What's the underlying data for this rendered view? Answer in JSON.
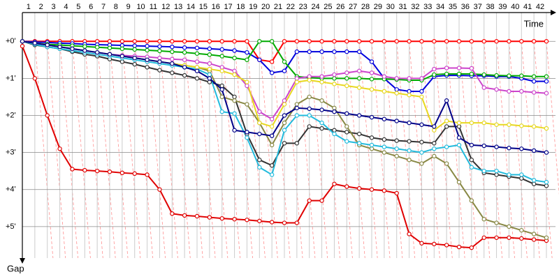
{
  "chart_data": {
    "type": "line",
    "x_label": "Time",
    "y_label": "Gap",
    "xlim": [
      0,
      42
    ],
    "xticks": [
      1,
      2,
      3,
      4,
      5,
      6,
      7,
      8,
      9,
      10,
      11,
      12,
      13,
      14,
      15,
      16,
      17,
      18,
      19,
      20,
      21,
      22,
      23,
      24,
      25,
      26,
      27,
      28,
      29,
      30,
      31,
      32,
      33,
      34,
      35,
      36,
      37,
      38,
      39,
      40,
      41,
      42
    ],
    "ylim": [
      -0.55,
      5.85
    ],
    "yticks": [
      {
        "value": 0,
        "label": "+0'"
      },
      {
        "value": 1,
        "label": "+1'"
      },
      {
        "value": 2,
        "label": "+2'"
      },
      {
        "value": 3,
        "label": "+3'"
      },
      {
        "value": 4,
        "label": "+4'"
      },
      {
        "value": 5,
        "label": "+5'"
      }
    ],
    "grid": true,
    "x": [
      0,
      1,
      2,
      3,
      4,
      5,
      6,
      7,
      8,
      9,
      10,
      11,
      12,
      13,
      14,
      15,
      16,
      17,
      18,
      19,
      20,
      21,
      22,
      23,
      24,
      25,
      26,
      27,
      28,
      29,
      30,
      31,
      32,
      33,
      34,
      35,
      36,
      37,
      38,
      39,
      40,
      41,
      42
    ],
    "series": [
      {
        "color": "#ff0000",
        "values": [
          0,
          0,
          0,
          0,
          0,
          0,
          0,
          0,
          0,
          0,
          0,
          0,
          0,
          0,
          0,
          0,
          0,
          0,
          0,
          0.5,
          0.55,
          0,
          0,
          0,
          0,
          0,
          0,
          0,
          0,
          0,
          0,
          0,
          0,
          0,
          0,
          0,
          0,
          0,
          0,
          0,
          0,
          0,
          0
        ]
      },
      {
        "color": "#e00000",
        "values": [
          0.13,
          1.0,
          2.0,
          2.9,
          3.45,
          3.48,
          3.5,
          3.52,
          3.55,
          3.57,
          3.6,
          4.0,
          4.65,
          4.7,
          4.72,
          4.75,
          4.78,
          4.8,
          4.82,
          4.85,
          4.88,
          4.9,
          4.9,
          4.3,
          4.3,
          3.85,
          3.92,
          3.97,
          4.0,
          4.03,
          4.1,
          5.2,
          5.45,
          5.47,
          5.5,
          5.55,
          5.57,
          5.3,
          5.3,
          5.3,
          5.32,
          5.35,
          5.38
        ]
      },
      {
        "color": "#0000dd",
        "values": [
          0,
          0.02,
          0.03,
          0.05,
          0.06,
          0.08,
          0.09,
          0.1,
          0.11,
          0.12,
          0.13,
          0.14,
          0.15,
          0.17,
          0.18,
          0.2,
          0.22,
          0.25,
          0.3,
          0.5,
          0.85,
          0.8,
          0.28,
          0.28,
          0.28,
          0.28,
          0.28,
          0.28,
          0.55,
          1.0,
          1.3,
          1.35,
          1.35,
          0.95,
          0.92,
          0.92,
          0.93,
          0.93,
          0.95,
          0.95,
          1.0,
          1.08,
          1.08
        ]
      },
      {
        "color": "#00aa00",
        "values": [
          0,
          0.05,
          0.08,
          0.1,
          0.12,
          0.14,
          0.16,
          0.18,
          0.2,
          0.22,
          0.24,
          0.26,
          0.28,
          0.3,
          0.33,
          0.36,
          0.4,
          0.45,
          0.5,
          0,
          0,
          0.55,
          0.95,
          0.98,
          1.0,
          1.0,
          1.0,
          1.0,
          1.02,
          1.02,
          1.03,
          1.05,
          1.05,
          0.9,
          0.88,
          0.88,
          0.88,
          0.9,
          0.92,
          0.93,
          0.93,
          0.95,
          0.95
        ]
      },
      {
        "color": "#333333",
        "values": [
          0,
          0.1,
          0.15,
          0.2,
          0.28,
          0.35,
          0.4,
          0.48,
          0.55,
          0.62,
          0.7,
          0.78,
          0.85,
          0.92,
          1.0,
          1.1,
          1.2,
          1.5,
          2.5,
          3.2,
          3.35,
          2.75,
          2.75,
          2.3,
          2.35,
          2.4,
          2.45,
          2.5,
          2.6,
          2.65,
          2.68,
          2.7,
          2.72,
          2.75,
          2.3,
          2.3,
          3.2,
          3.55,
          3.6,
          3.65,
          3.7,
          3.85,
          3.9
        ]
      },
      {
        "color": "#888844",
        "values": [
          0,
          0.05,
          0.1,
          0.15,
          0.2,
          0.25,
          0.3,
          0.35,
          0.4,
          0.45,
          0.5,
          0.55,
          0.6,
          0.65,
          0.7,
          0.8,
          1.5,
          1.6,
          1.7,
          2.2,
          2.8,
          2.2,
          1.7,
          1.5,
          1.6,
          1.8,
          2.3,
          2.8,
          2.9,
          3.0,
          3.1,
          3.2,
          3.3,
          3.1,
          3.3,
          3.8,
          4.3,
          4.8,
          4.9,
          5.0,
          5.1,
          5.2,
          5.3
        ]
      },
      {
        "color": "#cc44cc",
        "values": [
          0,
          0.05,
          0.1,
          0.15,
          0.2,
          0.25,
          0.3,
          0.35,
          0.38,
          0.4,
          0.42,
          0.45,
          0.48,
          0.5,
          0.55,
          0.6,
          0.7,
          0.8,
          1.2,
          1.9,
          2.1,
          1.6,
          1.0,
          0.95,
          0.95,
          0.9,
          0.85,
          0.8,
          0.85,
          0.95,
          1.0,
          1.0,
          1.0,
          0.75,
          0.72,
          0.72,
          0.73,
          1.25,
          1.3,
          1.35,
          1.35,
          1.38,
          1.4
        ]
      },
      {
        "color": "#22bbdd",
        "values": [
          0,
          0.08,
          0.15,
          0.2,
          0.25,
          0.3,
          0.35,
          0.4,
          0.45,
          0.5,
          0.55,
          0.6,
          0.65,
          0.7,
          0.75,
          0.9,
          1.9,
          1.95,
          2.6,
          3.4,
          3.6,
          2.4,
          2.0,
          2.0,
          2.2,
          2.5,
          2.7,
          2.75,
          2.8,
          2.85,
          2.9,
          2.95,
          3.0,
          2.9,
          2.85,
          2.8,
          3.4,
          3.5,
          3.5,
          3.6,
          3.6,
          3.75,
          3.8
        ]
      },
      {
        "color": "#e8d820",
        "values": [
          0,
          0.05,
          0.1,
          0.15,
          0.2,
          0.25,
          0.3,
          0.35,
          0.4,
          0.45,
          0.5,
          0.55,
          0.6,
          0.65,
          0.7,
          0.75,
          0.8,
          0.9,
          1.1,
          2.2,
          2.3,
          1.7,
          1.1,
          1.05,
          1.1,
          1.15,
          1.2,
          1.25,
          1.3,
          1.35,
          1.4,
          1.45,
          1.5,
          2.4,
          2.15,
          2.2,
          2.2,
          2.2,
          2.25,
          2.25,
          2.28,
          2.3,
          2.35
        ]
      },
      {
        "color": "#000088",
        "values": [
          0,
          0.05,
          0.1,
          0.15,
          0.2,
          0.25,
          0.3,
          0.35,
          0.4,
          0.45,
          0.5,
          0.55,
          0.6,
          0.7,
          0.8,
          1.0,
          1.3,
          2.4,
          2.45,
          2.5,
          2.55,
          2.0,
          1.8,
          1.82,
          1.85,
          1.9,
          1.95,
          2.0,
          2.05,
          2.1,
          2.15,
          2.2,
          2.25,
          2.3,
          1.6,
          2.6,
          2.8,
          2.82,
          2.85,
          2.88,
          2.9,
          2.95,
          3.0
        ]
      }
    ]
  }
}
